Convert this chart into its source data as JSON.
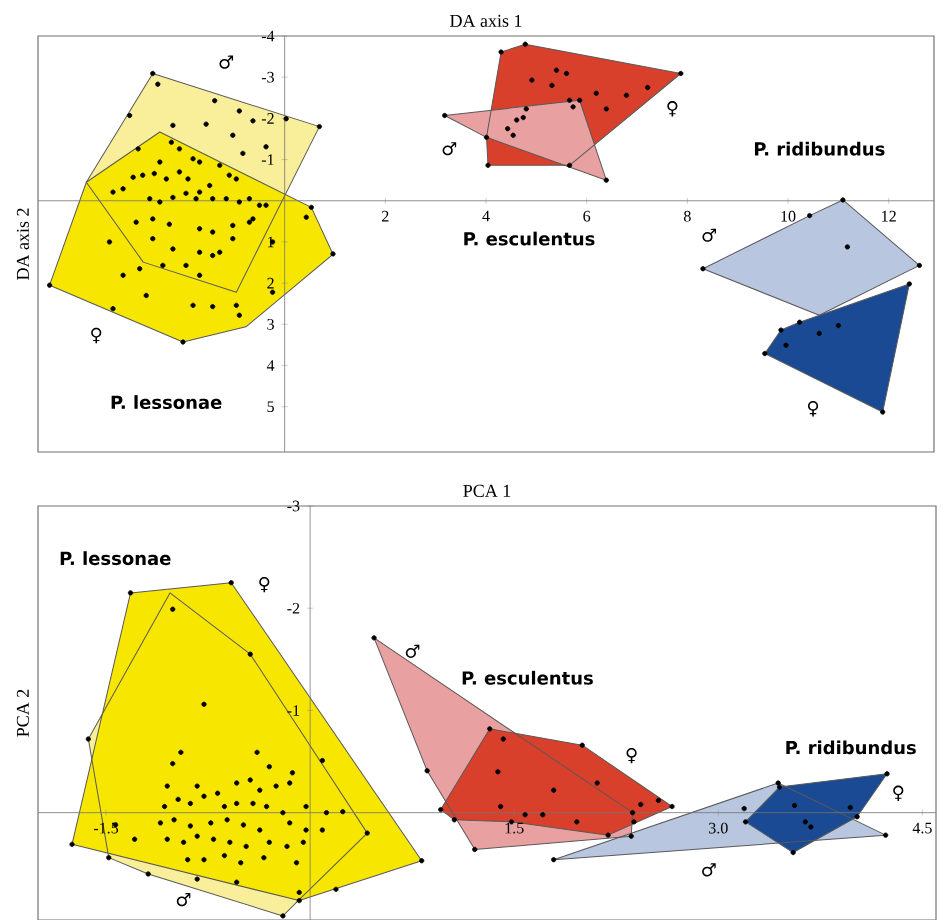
{
  "chart_data": [
    {
      "type": "scatter",
      "xlabel": "DA axis 1",
      "ylabel": "DA axis 2",
      "xlim": [
        -4.9,
        12.9
      ],
      "ylim": [
        6.1,
        -4
      ],
      "xticks": [
        2,
        4,
        6,
        8,
        10,
        12
      ],
      "yticks": [
        -4,
        -3,
        -2,
        -1,
        1,
        2,
        3,
        4,
        5
      ],
      "series": [
        {
          "type": "area",
          "color": "#f9ee9a",
          "x": [
            -2.62,
            0.69,
            -0.96,
            -2.81,
            -3.94
          ],
          "values": [
            -3.09,
            -1.8,
            2.22,
            1.49,
            -0.45
          ]
        },
        {
          "type": "area",
          "color": "#f6e600",
          "x": [
            -4.67,
            -3.94,
            -2.48,
            0.53,
            0.96,
            -0.77,
            -2.02
          ],
          "values": [
            2.05,
            -0.45,
            -1.67,
            0.16,
            1.3,
            3.06,
            3.43
          ]
        },
        {
          "type": "area",
          "color": "#d9402c",
          "x": [
            4.3,
            4.78,
            7.87,
            5.66,
            4.04,
            4.01
          ],
          "values": [
            -3.61,
            -3.8,
            -3.09,
            -0.86,
            -0.86,
            -1.54
          ]
        },
        {
          "type": "area",
          "color": "#e8a0a0",
          "x": [
            3.18,
            5.86,
            6.39,
            4.01
          ],
          "values": [
            -2.07,
            -2.44,
            -0.5,
            -1.54
          ]
        },
        {
          "type": "area",
          "color": "#b8c6e0",
          "x": [
            8.31,
            10.43,
            11.09,
            12.61,
            10.62
          ],
          "values": [
            1.65,
            0.36,
            -0.02,
            1.57,
            2.78
          ]
        },
        {
          "type": "area",
          "color": "#1a4a94",
          "x": [
            9.54,
            9.86,
            10.23,
            12.41,
            11.88
          ],
          "values": [
            3.71,
            3.14,
            2.95,
            2.02,
            5.13
          ]
        },
        {
          "marker": "circle",
          "color": "#000000",
          "x": [
            -2.52,
            -1.39,
            -0.63,
            -0.9,
            -2.22,
            -1.56,
            -1.03,
            -0.37,
            -3.08,
            -0.83,
            -2.91,
            -2.25,
            -2.09,
            -1.82,
            -2.48,
            -1.69,
            -1.29,
            -3.01,
            -2.82,
            -2.59,
            -2.35,
            -2.09,
            -1.92,
            -1.69,
            -1.49,
            -1.1,
            -0.96,
            -0.7,
            -0.5,
            -3.41,
            -3.21,
            -2.68,
            -2.48,
            -2.22,
            -1.96,
            -1.76,
            -1.43,
            -1.16,
            -0.9,
            -0.63,
            -0.37,
            0.43,
            -2.95,
            -2.62,
            -2.29,
            -1.69,
            -1.43,
            -1.03,
            -0.7,
            -3.48,
            -2.62,
            -2.22,
            -1.69,
            -1.43,
            -1.03,
            -0.24,
            -3.21,
            -2.88,
            -2.42,
            -1.96,
            -1.69,
            -1.29,
            -1.82,
            -2.75,
            -3.41,
            -1.43,
            -0.96,
            -0.24,
            -0.9,
            -2.02,
            -4.67,
            0.53,
            0.96,
            0.69,
            -2.62,
            0.03
          ],
          "values": [
            -2.83,
            -2.43,
            -1.94,
            -2.18,
            -1.83,
            -1.86,
            -1.59,
            -1.31,
            -2.07,
            -1.15,
            -1.26,
            -1.42,
            -1.26,
            -1.02,
            -0.94,
            -0.94,
            -0.86,
            -0.57,
            -0.62,
            -0.66,
            -0.53,
            -0.7,
            -0.53,
            -0.21,
            -0.37,
            -0.62,
            -0.53,
            -0.05,
            0.11,
            -0.21,
            -0.29,
            -0.05,
            0.03,
            -0.08,
            -0.18,
            -0.05,
            -0.05,
            -0.05,
            0.03,
            0.44,
            0.11,
            0.4,
            0.52,
            0.44,
            0.57,
            0.68,
            0.76,
            0.6,
            0.52,
            1.0,
            0.92,
            1.17,
            1.25,
            1.33,
            0.92,
            1.0,
            1.81,
            1.65,
            1.57,
            1.57,
            1.81,
            1.25,
            2.54,
            2.3,
            2.62,
            2.57,
            2.54,
            2.22,
            2.78,
            3.43,
            2.05,
            0.16,
            1.29,
            -1.8,
            -3.09,
            -1.99
          ]
        },
        {
          "marker": "circle",
          "color": "#000000",
          "x": [
            4.3,
            4.78,
            7.87,
            5.66,
            4.04,
            4.01,
            3.18,
            5.86,
            6.39,
            4.91,
            5.4,
            5.6,
            5.31,
            6.19,
            6.79,
            7.21,
            6.39,
            5.66,
            5.73,
            4.8,
            4.74,
            4.61,
            4.43,
            4.54
          ],
          "values": [
            -3.61,
            -3.8,
            -3.09,
            -0.86,
            -0.86,
            -1.54,
            -2.07,
            -2.44,
            -0.5,
            -2.93,
            -3.17,
            -3.09,
            -2.8,
            -2.61,
            -2.56,
            -2.75,
            -2.23,
            -2.44,
            -2.28,
            -2.23,
            -2.02,
            -1.96,
            -1.75,
            -1.59
          ]
        },
        {
          "marker": "circle",
          "color": "#000000",
          "x": [
            8.31,
            10.43,
            11.09,
            12.61,
            9.54,
            9.86,
            10.23,
            12.41,
            11.88,
            11.18,
            11.0,
            10.62,
            9.96
          ],
          "values": [
            1.65,
            0.36,
            -0.02,
            1.57,
            3.71,
            3.14,
            2.95,
            2.02,
            5.13,
            1.12,
            3.03,
            3.22,
            3.51
          ]
        }
      ],
      "annotations": [
        "P. lessonae",
        "P. esculentus",
        "P. ridibundus",
        "♂",
        "♀",
        "♂",
        "♀",
        "♂",
        "♀"
      ]
    },
    {
      "type": "scatter",
      "xlabel": "PCA 1",
      "ylabel": "PCA 2",
      "xlim": [
        -2.0,
        4.6
      ],
      "ylim": [
        1.05,
        -3
      ],
      "xticks": [
        -1.5,
        1.5,
        {
          "value": 3.0,
          "label": "3.0"
        },
        4.5
      ],
      "yticks": [
        -3,
        -2,
        -1
      ],
      "series": [
        {
          "type": "area",
          "color": "#f9ee9a",
          "x": [
            -1.03,
            -0.44,
            0.42,
            -0.08,
            -0.2,
            -1.19,
            -1.48,
            -1.63
          ],
          "values": [
            -2.15,
            -1.55,
            0.2,
            0.85,
            1.01,
            0.6,
            0.44,
            -0.72
          ]
        },
        {
          "type": "area",
          "color": "#f6e600",
          "x": [
            -1.32,
            -0.58,
            0.82,
            -0.08,
            -1.75
          ],
          "values": [
            -2.15,
            -2.25,
            0.47,
            0.86,
            0.31
          ]
        },
        {
          "type": "area",
          "color": "#e8a0a0",
          "x": [
            0.47,
            2.37,
            2.36,
            1.21,
            0.86
          ],
          "values": [
            -1.71,
            0.0,
            0.23,
            0.36,
            -0.41
          ]
        },
        {
          "type": "area",
          "color": "#d9402c",
          "x": [
            0.96,
            1.32,
            2.0,
            2.66,
            2.19,
            1.48,
            1.06
          ],
          "values": [
            -0.03,
            -0.82,
            -0.66,
            -0.06,
            0.22,
            0.09,
            0.07
          ]
        },
        {
          "type": "area",
          "color": "#b8c6e0",
          "x": [
            1.79,
            3.44,
            4.23
          ],
          "values": [
            0.46,
            -0.29,
            0.22
          ]
        },
        {
          "type": "area",
          "color": "#1a4a94",
          "x": [
            3.2,
            3.45,
            4.24,
            4.02,
            3.55
          ],
          "values": [
            0.09,
            -0.25,
            -0.38,
            0.04,
            0.39
          ]
        },
        {
          "marker": "circle",
          "color": "#000000",
          "x": [
            -1.01,
            -0.78,
            -0.95,
            -1.01,
            -0.39,
            -0.3,
            -0.13,
            -1.05,
            -0.83,
            -0.68,
            -0.54,
            -0.44,
            -0.37,
            -0.25,
            -0.15,
            -1.07,
            -0.97,
            -0.88,
            -0.78,
            -0.63,
            -0.54,
            -0.42,
            -0.32,
            -0.2,
            -0.03,
            0.12,
            0.24,
            -1.1,
            -1.0,
            -0.88,
            -0.73,
            -0.61,
            -0.49,
            -0.37,
            -0.15,
            -0.03,
            0.09,
            -1.05,
            -0.93,
            -0.83,
            -0.71,
            -0.59,
            -0.47,
            -0.3,
            -0.17,
            -0.05,
            -0.9,
            -0.78,
            -0.63,
            -0.51,
            -0.34,
            -0.1,
            -0.83,
            -0.54,
            -0.08,
            0.09,
            -1.43,
            -1.29,
            0.19,
            -1.19,
            -0.44,
            -1.32,
            -0.58,
            0.82,
            -1.75,
            -1.63,
            -1.48,
            -0.08,
            0.42,
            -0.2
          ],
          "values": [
            -1.99,
            -1.06,
            -0.59,
            -0.48,
            -0.59,
            -0.45,
            -0.39,
            -0.26,
            -0.26,
            -0.19,
            -0.29,
            -0.32,
            -0.22,
            -0.26,
            -0.29,
            -0.06,
            -0.13,
            -0.09,
            -0.16,
            -0.06,
            -0.09,
            -0.09,
            -0.06,
            0.0,
            -0.06,
            0.0,
            -0.01,
            0.1,
            0.07,
            0.13,
            0.1,
            0.07,
            0.12,
            0.17,
            0.1,
            0.17,
            0.17,
            0.26,
            0.29,
            0.23,
            0.26,
            0.29,
            0.33,
            0.29,
            0.33,
            0.29,
            0.46,
            0.46,
            0.42,
            0.49,
            0.44,
            0.49,
            0.65,
            0.68,
            0.78,
            -0.51,
            0.12,
            0.26,
            0.75,
            0.6,
            -1.55,
            -2.15,
            -2.25,
            0.47,
            0.31,
            -0.72,
            0.44,
            0.86,
            0.2,
            1.01
          ]
        },
        {
          "marker": "circle",
          "color": "#000000",
          "x": [
            0.47,
            0.86,
            1.21,
            2.36,
            2.37,
            0.96,
            1.32,
            2.0,
            2.66,
            2.19,
            1.48,
            1.06,
            1.42,
            1.38,
            1.79,
            1.4,
            1.58,
            1.71,
            1.96,
            2.11,
            2.43,
            2.56,
            2.38
          ],
          "values": [
            -1.71,
            -0.41,
            0.36,
            0.23,
            0.0,
            -0.03,
            -0.82,
            -0.66,
            -0.06,
            0.22,
            0.09,
            0.07,
            -0.72,
            -0.4,
            -0.22,
            -0.06,
            0.02,
            0.02,
            0.09,
            -0.29,
            -0.08,
            -0.12,
            0.09
          ]
        },
        {
          "marker": "circle",
          "color": "#000000",
          "x": [
            1.79,
            3.44,
            4.23,
            3.2,
            3.45,
            4.24,
            4.02,
            3.55,
            3.19,
            3.56,
            3.64,
            3.68,
            3.97
          ],
          "values": [
            0.46,
            -0.29,
            0.22,
            0.09,
            -0.25,
            -0.38,
            0.04,
            0.39,
            -0.04,
            -0.07,
            0.09,
            0.14,
            -0.05
          ]
        }
      ],
      "annotations": [
        "P. lessonae",
        "P. esculentus",
        "P. ridibundus",
        "♀",
        "♂",
        "♂",
        "♀",
        "♀",
        "♂"
      ]
    }
  ]
}
